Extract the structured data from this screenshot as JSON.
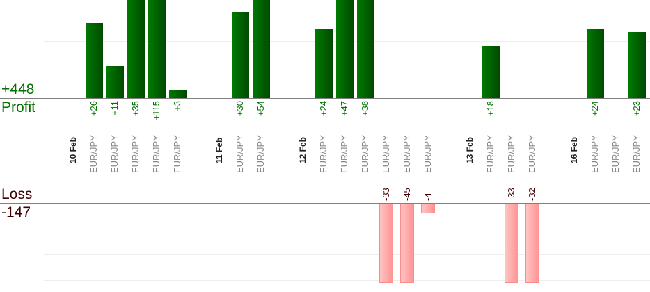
{
  "chart_data": {
    "type": "bar",
    "profit_label": "Profit",
    "profit_total": "+448",
    "loss_label": "Loss",
    "loss_total": "-147",
    "colors": {
      "profit": "#006400",
      "profit_text": "#007000",
      "loss": "#ff9c9c",
      "loss_text": "#400000",
      "date": "#222222",
      "pair": "#888888"
    },
    "columns": [
      {
        "date": "10 Feb"
      },
      {
        "pair": "EUR/JPY",
        "value": 26,
        "label": "+26"
      },
      {
        "pair": "EUR/JPY",
        "value": 11,
        "label": "+11"
      },
      {
        "pair": "EUR/JPY",
        "value": 35,
        "label": "+35"
      },
      {
        "pair": "EUR/JPY",
        "value": 115,
        "label": "+115"
      },
      {
        "pair": "EUR/JPY",
        "value": 3,
        "label": "+3"
      },
      {},
      {
        "date": "11 Feb"
      },
      {
        "pair": "EUR/JPY",
        "value": 30,
        "label": "+30"
      },
      {
        "pair": "EUR/JPY",
        "value": 54,
        "label": "+54"
      },
      {},
      {
        "date": "12 Feb"
      },
      {
        "pair": "EUR/JPY",
        "value": 24,
        "label": "+24"
      },
      {
        "pair": "EUR/JPY",
        "value": 47,
        "label": "+47"
      },
      {
        "pair": "EUR/JPY",
        "value": 38,
        "label": "+38"
      },
      {
        "pair": "EUR/JPY",
        "value": -33,
        "label": "-33"
      },
      {
        "pair": "EUR/JPY",
        "value": -45,
        "label": "-45"
      },
      {
        "pair": "EUR/JPY",
        "value": -4,
        "label": "-4"
      },
      {},
      {
        "date": "13 Feb"
      },
      {
        "pair": "EUR/JPY",
        "value": 18,
        "label": "+18"
      },
      {
        "pair": "EUR/JPY",
        "value": -33,
        "label": "-33"
      },
      {
        "pair": "EUR/JPY",
        "value": -32,
        "label": "-32"
      },
      {},
      {
        "date": "16 Feb"
      },
      {
        "pair": "EUR/JPY",
        "value": 24,
        "label": "+24"
      },
      {
        "pair": "EUR/JPY"
      },
      {
        "pair": "EUR/JPY",
        "value": 23,
        "label": "+23"
      }
    ]
  }
}
